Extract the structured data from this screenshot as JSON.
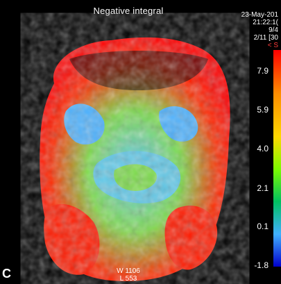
{
  "title": "Negative integral",
  "stamp": {
    "date": "23-May-201",
    "time": "21:22:1(",
    "line3": "9/4",
    "line4": "2/11 [30",
    "marker": "< S"
  },
  "color_scale": {
    "ticks": [
      "7.9",
      "5.9",
      "4.0",
      "2.1",
      "0.1",
      "-1.8"
    ],
    "colors_top_to_bottom": [
      "#ff0000",
      "#ff8c00",
      "#ffd700",
      "#7cfc00",
      "#00c060",
      "#40b0ff",
      "#0000cc"
    ]
  },
  "panel_label": "C",
  "window": {
    "width_label": "W 1106",
    "level_label": "L 553"
  }
}
